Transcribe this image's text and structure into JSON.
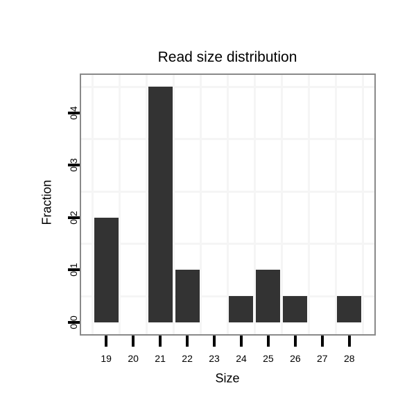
{
  "chart_data": {
    "type": "bar",
    "title": "Read size distribution",
    "xlabel": "Size",
    "ylabel": "Fraction",
    "categories": [
      19,
      20,
      21,
      22,
      23,
      24,
      25,
      26,
      27,
      28
    ],
    "values": [
      0.2,
      0,
      0.45,
      0.1,
      0,
      0.05,
      0.1,
      0.05,
      0,
      0.05
    ],
    "x_tick_labels": [
      "19",
      "20",
      "21",
      "22",
      "23",
      "24",
      "25",
      "26",
      "27",
      "28"
    ],
    "y_tick_labels": [
      "0.0",
      "0.1",
      "0.2",
      "0.3",
      "0.4"
    ],
    "y_tick_values": [
      0,
      0.1,
      0.2,
      0.3,
      0.4
    ],
    "xlim": [
      18.07,
      28.93
    ],
    "ylim": [
      -0.0225,
      0.4725
    ],
    "bar_width": 0.9,
    "grid": "minor-only",
    "minor_grid_x": [
      18.5,
      19.5,
      20.5,
      21.5,
      22.5,
      23.5,
      24.5,
      25.5,
      26.5,
      27.5,
      28.5
    ],
    "minor_grid_y": [
      0.05,
      0.15,
      0.25,
      0.35,
      0.45
    ],
    "legend": "none",
    "colors": {
      "bar_fill": "#333333",
      "panel_border": "#898989",
      "gridline": "#f5f5f5",
      "tick": "#000000",
      "text": "#000000",
      "background": "#ffffff"
    }
  }
}
